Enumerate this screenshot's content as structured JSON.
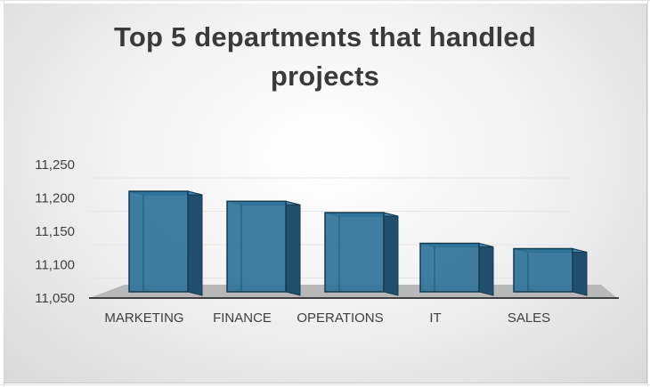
{
  "chart_data": {
    "type": "bar",
    "title": "Top 5 departments that handled projects",
    "categories": [
      "MARKETING",
      "FINANCE",
      "OPERATIONS",
      "IT",
      "SALES"
    ],
    "values": [
      11210,
      11195,
      11178,
      11132,
      11124
    ],
    "ylim": [
      11050,
      11250
    ],
    "yticks": [
      "11,050",
      "11,100",
      "11,150",
      "11,200",
      "11,250"
    ],
    "ytick_values": [
      11050,
      11100,
      11150,
      11200,
      11250
    ],
    "xlabel": "",
    "ylabel": "",
    "legend": "none",
    "bar_color": "#2f7399",
    "style": "3d-column"
  }
}
